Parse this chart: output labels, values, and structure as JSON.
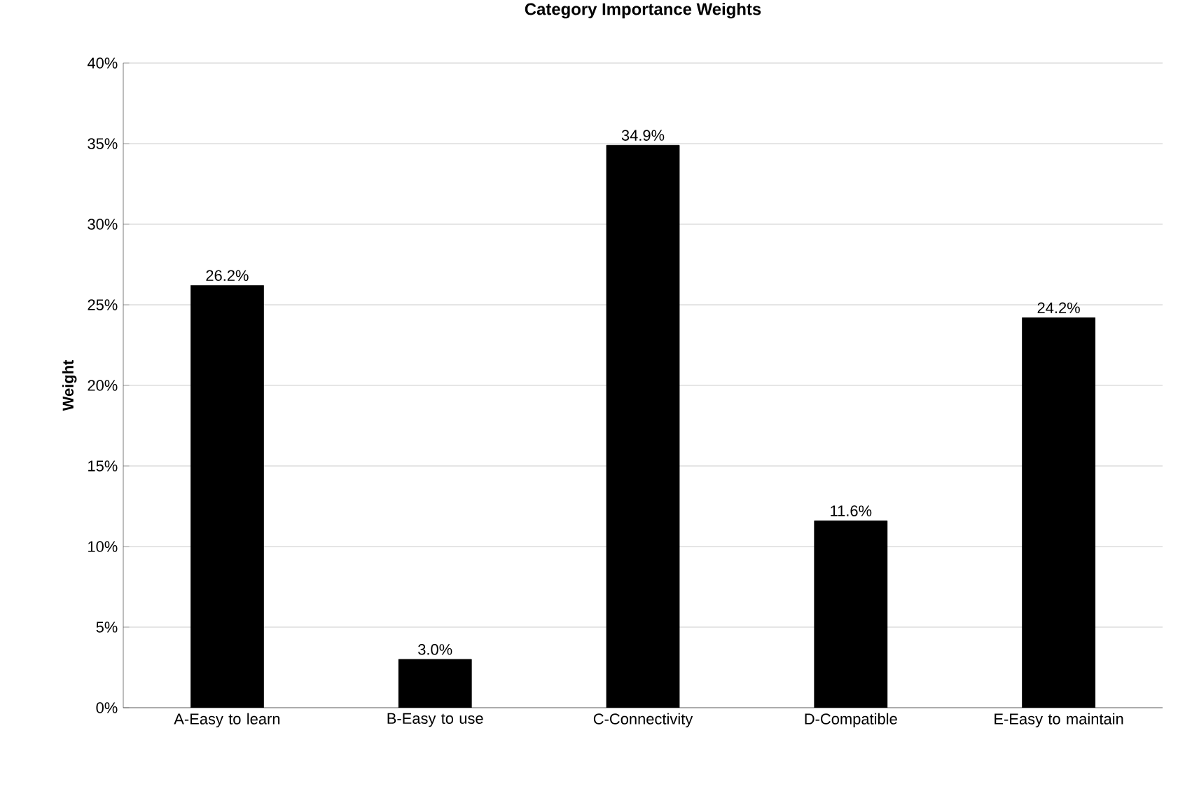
{
  "chart_data": {
    "type": "bar",
    "title": "Category Importance Weights",
    "ylabel": "Weight",
    "categories": [
      "A-Easy to learn",
      "B-Easy to use",
      "C-Connectivity",
      "D-Compatible",
      "E-Easy to maintain"
    ],
    "values": [
      26.2,
      3.0,
      34.9,
      11.6,
      24.2
    ],
    "value_labels": [
      "26.2%",
      "3.0%",
      "34.9%",
      "11.6%",
      "24.2%"
    ],
    "color": "#000000",
    "ylim": [
      0,
      40
    ],
    "yticks": [
      {
        "value": 0,
        "label": "0%"
      },
      {
        "value": 5,
        "label": "5%"
      },
      {
        "value": 10,
        "label": "10%"
      },
      {
        "value": 15,
        "label": "15%"
      },
      {
        "value": 20,
        "label": "20%"
      },
      {
        "value": 25,
        "label": "25%"
      },
      {
        "value": 30,
        "label": "30%"
      },
      {
        "value": 35,
        "label": "35%"
      },
      {
        "value": 40,
        "label": "40%"
      }
    ],
    "grid": "y"
  }
}
